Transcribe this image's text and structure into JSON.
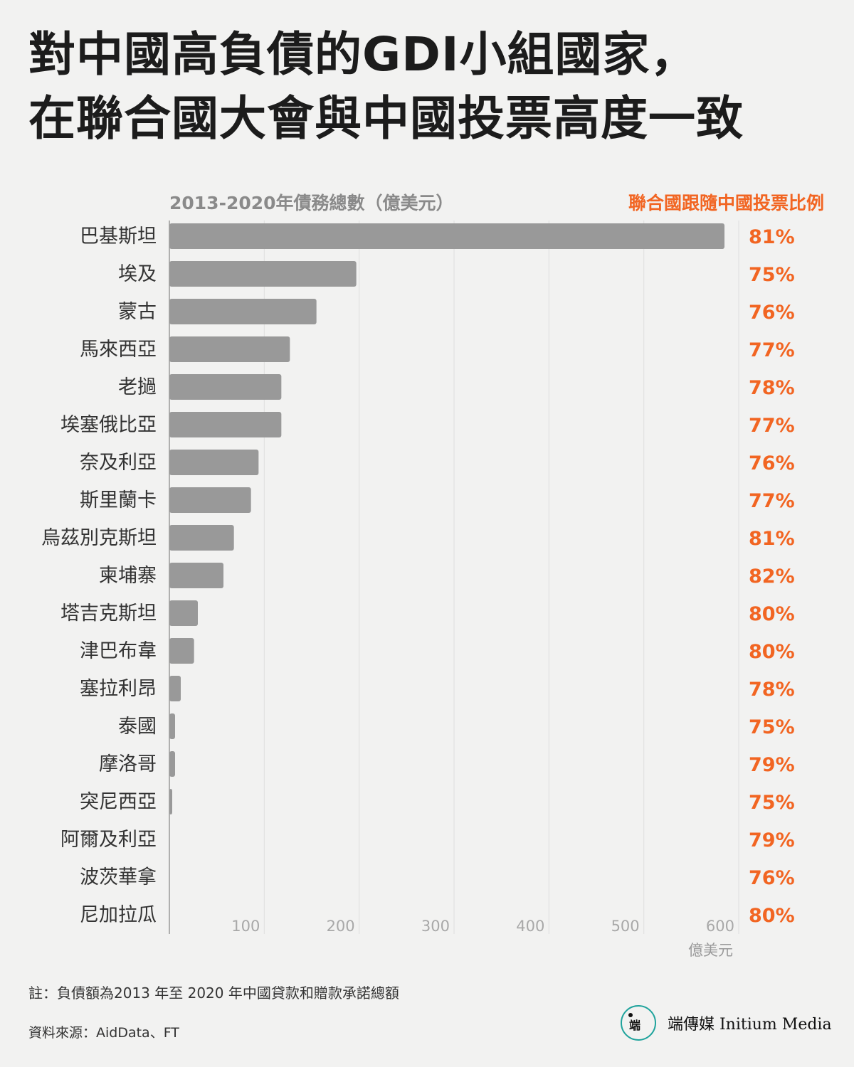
{
  "title": {
    "line1": "對中國高負債的GDI小組國家，",
    "line2": "在聯合國大會與中國投票高度一致"
  },
  "chart_data": {
    "type": "bar",
    "orientation": "horizontal",
    "subtitle": "2013-2020年債務總數（億美元）",
    "right_header": "聯合國跟隨中國投票比例",
    "xlabel": "億美元",
    "xlim": [
      0,
      600
    ],
    "xticks": [
      100,
      200,
      300,
      400,
      500,
      600
    ],
    "grid": true,
    "categories": [
      "巴基斯坦",
      "埃及",
      "蒙古",
      "馬來西亞",
      "老撾",
      "埃塞俄比亞",
      "奈及利亞",
      "斯里蘭卡",
      "烏茲別克斯坦",
      "柬埔寨",
      "塔吉克斯坦",
      "津巴布韋",
      "塞拉利昂",
      "泰國",
      "摩洛哥",
      "突尼西亞",
      "阿爾及利亞",
      "波茨華拿",
      "尼加拉瓜"
    ],
    "values": [
      585,
      197,
      155,
      127,
      118,
      118,
      94,
      86,
      68,
      57,
      30,
      26,
      12,
      6,
      6,
      3,
      0,
      0,
      0
    ],
    "vote_share": [
      "81%",
      "75%",
      "76%",
      "77%",
      "78%",
      "77%",
      "76%",
      "77%",
      "81%",
      "82%",
      "80%",
      "80%",
      "78%",
      "75%",
      "79%",
      "75%",
      "79%",
      "76%",
      "80%"
    ],
    "colors": {
      "bar": "#999999",
      "accent": "#f26522",
      "grid": "#dedede",
      "axis": "#999999"
    }
  },
  "footer": {
    "note": "註：負債額為2013 年至 2020 年中國貸款和贈款承諾總額",
    "source": "資料來源：AidData、FT",
    "logo_text": "端傳媒 Initium Media",
    "logo_glyph": "端",
    "logo_color": "#1fa39c"
  }
}
